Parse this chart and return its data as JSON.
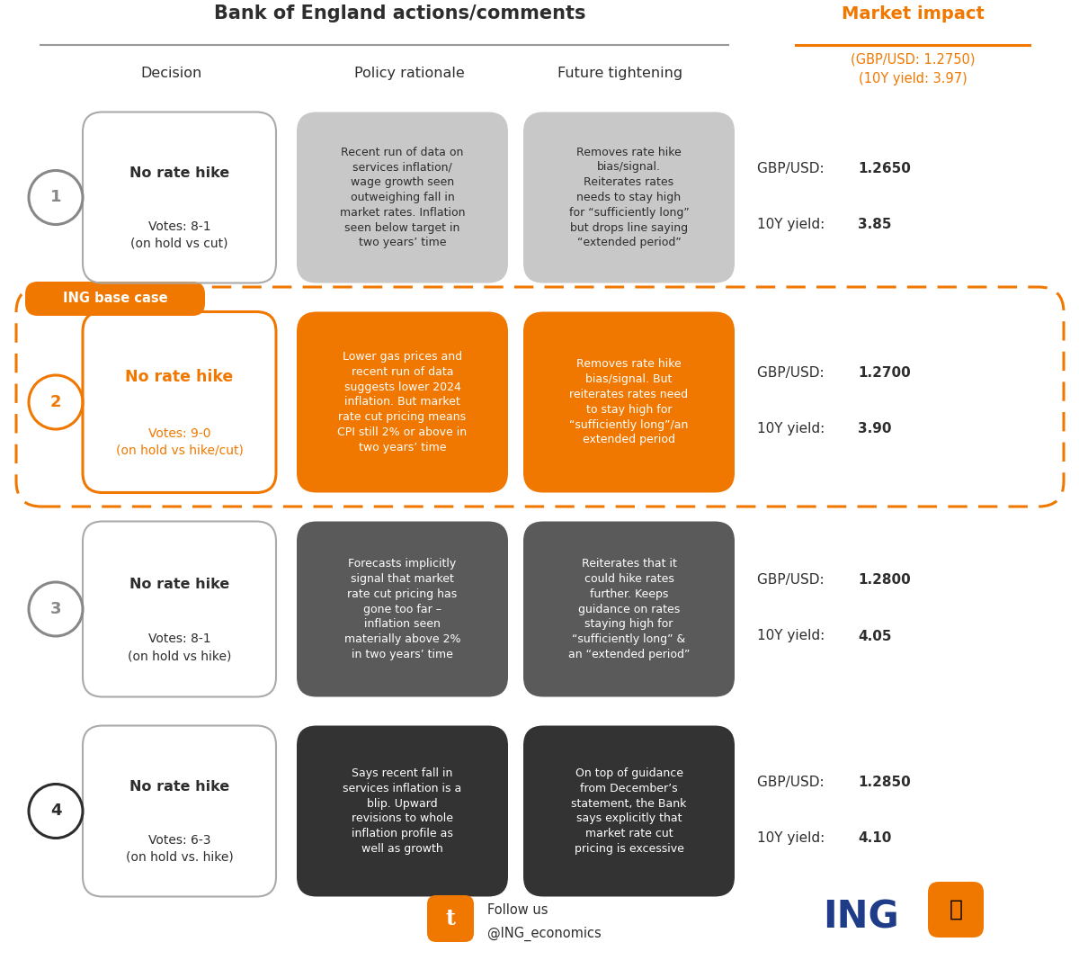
{
  "title": "Bank of England actions/comments",
  "market_impact_title": "Market impact",
  "col_headers": [
    "Decision",
    "Policy rationale",
    "Future tightening"
  ],
  "market_header_subtitle": "(GBP/USD: 1.2750)\n(10Y yield: 3.97)",
  "orange": "#F07800",
  "dark_gray": "#2D2D2D",
  "light_gray_text": "#666666",
  "light_gray_box": "#C8C8C8",
  "mid_gray_box": "#5A5A5A",
  "dark_box": "#333333",
  "ing_blue": "#1F3C88",
  "scenarios": [
    {
      "num": "1",
      "decision_title": "No rate hike",
      "decision_sub": "Votes: 8-1\n(on hold vs cut)",
      "is_base": false,
      "is_darkest": false,
      "policy_text": "Recent run of data on\nservices inflation/\nwage growth seen\noutweighing fall in\nmarket rates. Inflation\nseen below target in\ntwo years’ time",
      "future_text": "Removes rate hike\nbias/signal.\nReiterates rates\nneeds to stay high\nfor “sufficiently long”\nbut drops line saying\n“extended period”",
      "policy_color": "#C8C8C8",
      "future_color": "#C8C8C8",
      "policy_text_color": "#2D2D2D",
      "future_text_color": "#2D2D2D",
      "circle_color": "#888888",
      "gbpusd": "1.2650",
      "yield10y": "3.85"
    },
    {
      "num": "2",
      "decision_title": "No rate hike",
      "decision_sub": "Votes: 9-0\n(on hold vs hike/cut)",
      "is_base": true,
      "is_darkest": false,
      "policy_text": "Lower gas prices and\nrecent run of data\nsuggests lower 2024\ninflation. But market\nrate cut pricing means\nCPI still 2% or above in\ntwo years’ time",
      "future_text": "Removes rate hike\nbias/signal. But\nreiterates rates need\nto stay high for\n“sufficiently long”/an\nextended period",
      "policy_color": "#F07800",
      "future_color": "#F07800",
      "policy_text_color": "#FFFFFF",
      "future_text_color": "#FFFFFF",
      "circle_color": "#F07800",
      "gbpusd": "1.2700",
      "yield10y": "3.90"
    },
    {
      "num": "3",
      "decision_title": "No rate hike",
      "decision_sub": "Votes: 8-1\n(on hold vs hike)",
      "is_base": false,
      "is_darkest": false,
      "policy_text": "Forecasts implicitly\nsignal that market\nrate cut pricing has\ngone too far –\ninflation seen\nmaterially above 2%\nin two years’ time",
      "future_text": "Reiterates that it\ncould hike rates\nfurther. Keeps\nguidance on rates\nstaying high for\n“sufficiently long” &\nan “extended period”",
      "policy_color": "#5A5A5A",
      "future_color": "#5A5A5A",
      "policy_text_color": "#FFFFFF",
      "future_text_color": "#FFFFFF",
      "circle_color": "#888888",
      "gbpusd": "1.2800",
      "yield10y": "4.05"
    },
    {
      "num": "4",
      "decision_title": "No rate hike",
      "decision_sub": "Votes: 6-3\n(on hold vs. hike)",
      "is_base": false,
      "is_darkest": true,
      "policy_text": "Says recent fall in\nservices inflation is a\nblip. Upward\nrevisions to whole\ninflation profile as\nwell as growth",
      "future_text": "On top of guidance\nfrom December’s\nstatement, the Bank\nsays explicitly that\nmarket rate cut\npricing is excessive",
      "policy_color": "#333333",
      "future_color": "#333333",
      "policy_text_color": "#FFFFFF",
      "future_text_color": "#FFFFFF",
      "circle_color": "#2D2D2D",
      "gbpusd": "1.2850",
      "yield10y": "4.10"
    }
  ],
  "background_color": "#FFFFFF"
}
